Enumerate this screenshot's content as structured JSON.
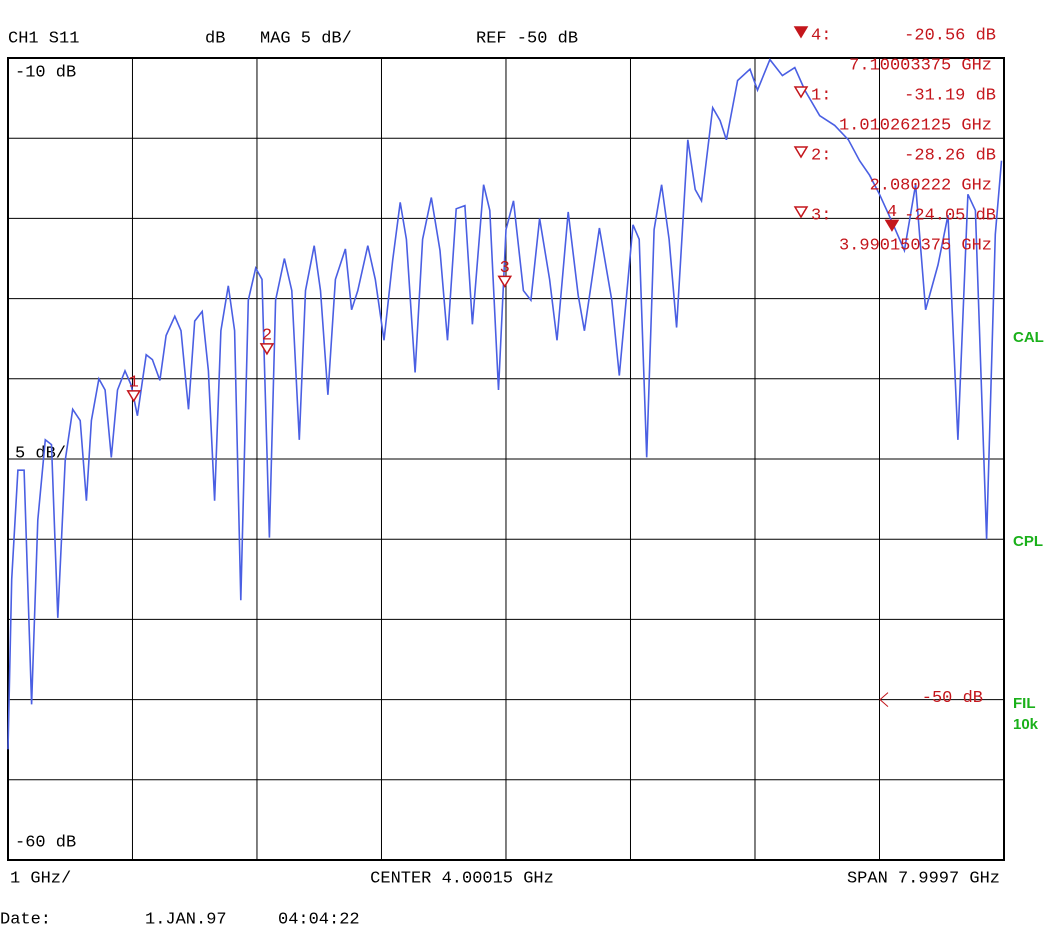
{
  "chart_data": {
    "type": "line",
    "channel": "CH1 S11",
    "format": "dB",
    "mag": "MAG 5 dB/",
    "ref": {
      "value": -50,
      "label": "REF -50 dB"
    },
    "ref_marker_label": "-50 dB",
    "y_scale": {
      "value": 5,
      "label": "5 dB/"
    },
    "x_scale": {
      "value": 1,
      "label": "1 GHz/"
    },
    "center": {
      "value": 4.00015,
      "label": "CENTER 4.00015 GHz"
    },
    "span": {
      "value": 7.9997,
      "label": "SPAN 7.9997 GHz"
    },
    "xlim": [
      0.0003,
      8.0
    ],
    "ylim": [
      -60,
      -10
    ],
    "yticks": [
      {
        "value": -10,
        "label": "-10 dB"
      },
      {
        "value": -60,
        "label": "-60 dB"
      }
    ],
    "grid": true,
    "color": "#4a5fe3",
    "marker_color": "#c4161c",
    "x": [
      0.0,
      0.03,
      0.08,
      0.13,
      0.19,
      0.24,
      0.3,
      0.35,
      0.4,
      0.46,
      0.52,
      0.58,
      0.63,
      0.67,
      0.73,
      0.78,
      0.83,
      0.88,
      0.94,
      0.99,
      1.04,
      1.11,
      1.16,
      1.22,
      1.27,
      1.34,
      1.39,
      1.45,
      1.5,
      1.56,
      1.61,
      1.66,
      1.71,
      1.77,
      1.82,
      1.87,
      1.93,
      1.99,
      2.04,
      2.1,
      2.15,
      2.22,
      2.28,
      2.34,
      2.39,
      2.46,
      2.51,
      2.57,
      2.63,
      2.71,
      2.76,
      2.81,
      2.89,
      2.95,
      3.02,
      3.09,
      3.15,
      3.2,
      3.27,
      3.33,
      3.4,
      3.47,
      3.53,
      3.6,
      3.67,
      3.73,
      3.82,
      3.87,
      3.94,
      4.0,
      4.06,
      4.14,
      4.2,
      4.27,
      4.35,
      4.41,
      4.5,
      4.58,
      4.63,
      4.75,
      4.85,
      4.91,
      5.02,
      5.07,
      5.13,
      5.19,
      5.25,
      5.31,
      5.37,
      5.46,
      5.52,
      5.57,
      5.66,
      5.72,
      5.77,
      5.86,
      5.96,
      6.02,
      6.12,
      6.22,
      6.32,
      6.4,
      6.52,
      6.64,
      6.75,
      6.84,
      6.92,
      7.0,
      7.1,
      7.2,
      7.29,
      7.37,
      7.47,
      7.55,
      7.63,
      7.71,
      7.77,
      7.86,
      7.93,
      7.98
    ],
    "values": [
      -53.1,
      -42.5,
      -35.7,
      -35.7,
      -50.3,
      -38.8,
      -33.8,
      -34.1,
      -44.9,
      -35.1,
      -31.9,
      -32.6,
      -37.6,
      -32.6,
      -30.0,
      -30.7,
      -34.9,
      -30.7,
      -29.5,
      -30.4,
      -32.3,
      -28.5,
      -28.8,
      -30.1,
      -27.3,
      -26.1,
      -27.0,
      -31.9,
      -26.4,
      -25.8,
      -29.5,
      -37.6,
      -27.0,
      -24.2,
      -27.0,
      -43.8,
      -25.1,
      -23.1,
      -23.8,
      -39.9,
      -25.1,
      -22.5,
      -24.5,
      -33.8,
      -24.5,
      -21.7,
      -24.5,
      -31.0,
      -23.8,
      -21.9,
      -25.7,
      -24.5,
      -21.7,
      -23.8,
      -27.6,
      -22.6,
      -19.0,
      -21.3,
      -29.6,
      -21.3,
      -18.7,
      -22.0,
      -27.6,
      -19.4,
      -19.2,
      -26.6,
      -17.9,
      -19.5,
      -30.7,
      -20.7,
      -18.9,
      -24.5,
      -25.1,
      -20.0,
      -23.8,
      -27.6,
      -19.6,
      -24.8,
      -27.0,
      -20.6,
      -25.1,
      -29.8,
      -20.4,
      -21.3,
      -34.9,
      -20.7,
      -17.9,
      -21.3,
      -26.8,
      -15.1,
      -18.2,
      -18.9,
      -13.1,
      -13.9,
      -15.1,
      -11.4,
      -10.7,
      -12.0,
      -10.1,
      -11.1,
      -10.6,
      -12.0,
      -13.6,
      -14.2,
      -15.1,
      -16.4,
      -17.3,
      -18.5,
      -20.2,
      -22.0,
      -17.9,
      -25.7,
      -22.9,
      -19.8,
      -33.8,
      -18.5,
      -19.5,
      -40.0,
      -21.0,
      -16.4
    ],
    "markers": [
      {
        "id": "1",
        "readout": "1:",
        "value": -31.19,
        "value_label": "-31.19 dB",
        "freq": 1.010262125,
        "freq_label": "1.010262125 GHz",
        "active": false
      },
      {
        "id": "2",
        "readout": "2:",
        "value": -28.26,
        "value_label": "-28.26 dB",
        "freq": 2.080222,
        "freq_label": "2.080222 GHz",
        "active": false
      },
      {
        "id": "3",
        "readout": "3:",
        "value": -24.05,
        "value_label": "-24.05 dB",
        "freq": 3.990150375,
        "freq_label": "3.990150375 GHz",
        "active": false
      },
      {
        "id": "4",
        "readout": "4:",
        "value": -20.56,
        "value_label": "-20.56 dB",
        "freq": 7.10003375,
        "freq_label": "7.10003375 GHz",
        "active": true
      }
    ],
    "status": [
      "CAL",
      "CPL",
      "FIL",
      "10k"
    ],
    "date_label": "Date:",
    "date": "1.JAN.97",
    "time": "04:04:22"
  }
}
